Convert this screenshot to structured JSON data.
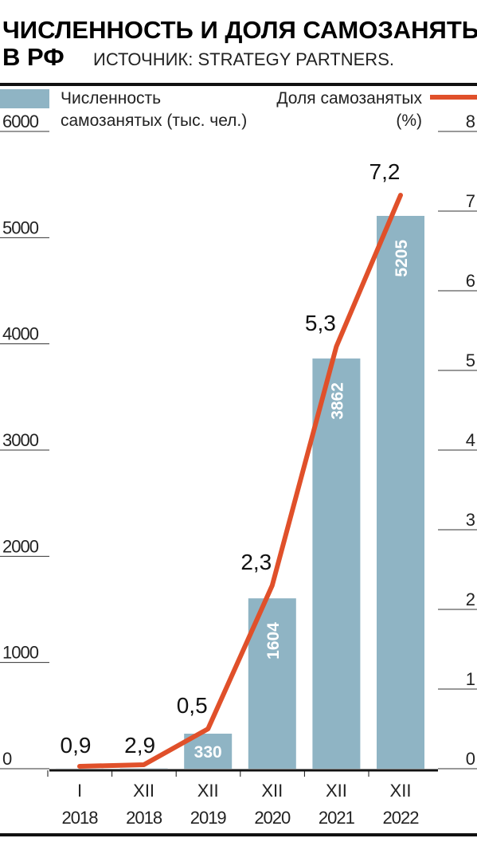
{
  "chart_data": {
    "type": "bar_line",
    "title": [
      "ЧИСЛЕННОСТЬ И ДОЛЯ САМОЗАНЯТЫХ",
      "В РФ"
    ],
    "source": "ИСТОЧНИК: STRATEGY PARTNERS.",
    "categories": [
      [
        "I",
        "2018"
      ],
      [
        "XII",
        "2018"
      ],
      [
        "XII",
        "2019"
      ],
      [
        "XII",
        "2020"
      ],
      [
        "XII",
        "2021"
      ],
      [
        "XII",
        "2022"
      ]
    ],
    "series": [
      {
        "name": [
          "Численность",
          "самозанятых (тыс. чел.)"
        ],
        "type": "bar",
        "color": "#8fb4c4",
        "values": [
          0.9,
          2.9,
          330,
          1604,
          3862,
          5205
        ],
        "value_labels": [
          "0,9",
          "2,9",
          "330",
          "1604",
          "3862",
          "5205"
        ]
      },
      {
        "name": [
          "Доля самозанятых",
          "(%)"
        ],
        "type": "line",
        "axis": "y2",
        "color": "#e0502a",
        "values": [
          0.03,
          0.05,
          0.5,
          2.3,
          5.3,
          7.2
        ],
        "value_labels": [
          null,
          null,
          "0,5",
          "2,3",
          "5,3",
          "7,2"
        ]
      }
    ],
    "ylim": [
      0,
      6000
    ],
    "yticks": [
      0,
      1000,
      2000,
      3000,
      4000,
      5000,
      6000
    ],
    "y2lim": [
      0,
      8
    ],
    "y2ticks": [
      0,
      1,
      2,
      3,
      4,
      5,
      6,
      7,
      8
    ]
  }
}
